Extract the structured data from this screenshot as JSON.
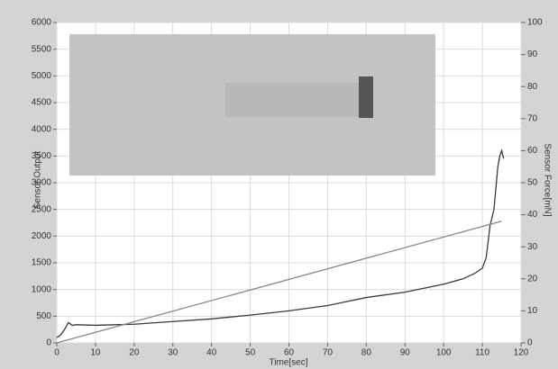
{
  "chart_data": {
    "type": "line",
    "x_label": "Time[sec]",
    "y_label": "Sensor Output",
    "y2_label": "Sensor Force[mN]",
    "xlim": [
      0,
      120
    ],
    "xticks": [
      0,
      10,
      20,
      30,
      40,
      50,
      60,
      70,
      80,
      90,
      100,
      110,
      120
    ],
    "ylim": [
      0,
      6000
    ],
    "yticks": [
      0,
      500,
      1000,
      1500,
      2000,
      2500,
      3000,
      3500,
      4000,
      4500,
      5000,
      5500,
      6000
    ],
    "y2lim": [
      0,
      100
    ],
    "y2ticks": [
      0,
      10,
      20,
      30,
      40,
      50,
      60,
      70,
      80,
      90,
      100
    ],
    "grid": true,
    "series": [
      {
        "color": "#3a3a3a",
        "x": [
          0,
          1,
          2,
          3,
          4,
          5,
          10,
          20,
          30,
          40,
          50,
          60,
          70,
          80,
          90,
          100,
          105,
          108,
          110,
          111,
          112,
          113,
          113.5,
          114,
          114.5,
          115,
          115.5
        ],
        "values": [
          100,
          150,
          250,
          380,
          330,
          340,
          330,
          350,
          400,
          450,
          520,
          600,
          700,
          850,
          950,
          1100,
          1200,
          1300,
          1400,
          1600,
          2200,
          2500,
          2900,
          3300,
          3500,
          3600,
          3450
        ]
      },
      {
        "color": "#888888",
        "axis": "y2",
        "x": [
          0,
          115
        ],
        "values": [
          0,
          38
        ]
      }
    ]
  }
}
